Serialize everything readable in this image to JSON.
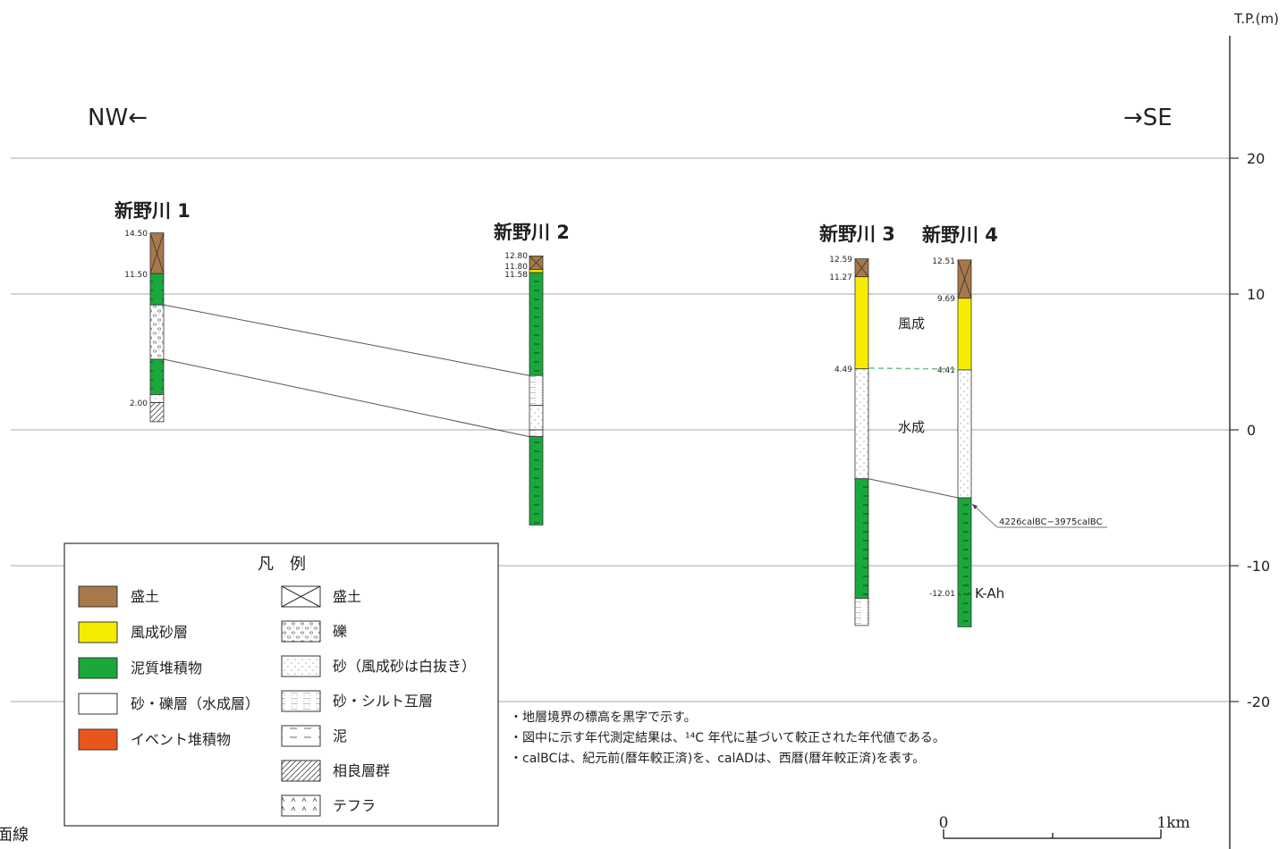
{
  "axis": {
    "unit_label": "T.P.(m)",
    "ticks": [
      {
        "value": 20,
        "label": "20"
      },
      {
        "value": 10,
        "label": "10"
      },
      {
        "value": 0,
        "label": "0"
      },
      {
        "value": -10,
        "label": "-10"
      },
      {
        "value": -20,
        "label": "-20"
      }
    ]
  },
  "direction": {
    "left": "NW←",
    "right": "→SE"
  },
  "boreholes": [
    {
      "name": "新野川 1",
      "depth_labels": [
        "14.50",
        "11.50",
        "2.00"
      ],
      "layers": [
        {
          "top": 14.5,
          "bottom": 11.5,
          "type": "fill"
        },
        {
          "top": 11.5,
          "bottom": 9.2,
          "type": "mud"
        },
        {
          "top": 9.2,
          "bottom": 5.2,
          "type": "gravel"
        },
        {
          "top": 5.2,
          "bottom": 2.6,
          "type": "mud"
        },
        {
          "top": 2.6,
          "bottom": 2.0,
          "type": "sand"
        },
        {
          "top": 2.0,
          "bottom": 0.6,
          "type": "sagara"
        }
      ]
    },
    {
      "name": "新野川 2",
      "depth_labels": [
        "12.80",
        "11.80",
        "11.58"
      ],
      "layers": [
        {
          "top": 12.8,
          "bottom": 11.8,
          "type": "fill"
        },
        {
          "top": 11.8,
          "bottom": 11.58,
          "type": "eolian"
        },
        {
          "top": 11.58,
          "bottom": 4.0,
          "type": "mud"
        },
        {
          "top": 4.0,
          "bottom": 1.8,
          "type": "silt"
        },
        {
          "top": 1.8,
          "bottom": 0.0,
          "type": "sand"
        },
        {
          "top": 0.0,
          "bottom": -0.5,
          "type": "silt"
        },
        {
          "top": -0.5,
          "bottom": -7.0,
          "type": "mud"
        }
      ]
    },
    {
      "name": "新野川 3",
      "depth_labels": [
        "12.59",
        "11.27",
        "4.49"
      ],
      "layers": [
        {
          "top": 12.59,
          "bottom": 11.27,
          "type": "fill"
        },
        {
          "top": 11.27,
          "bottom": 4.49,
          "type": "eolian"
        },
        {
          "top": 4.49,
          "bottom": -3.6,
          "type": "sand"
        },
        {
          "top": -3.6,
          "bottom": -12.4,
          "type": "mud"
        },
        {
          "top": -12.4,
          "bottom": -14.4,
          "type": "silt"
        }
      ]
    },
    {
      "name": "新野川 4",
      "depth_labels": [
        "12.51",
        "9.69",
        "4.41",
        "-12.01"
      ],
      "layers": [
        {
          "top": 12.51,
          "bottom": 9.69,
          "type": "fill"
        },
        {
          "top": 9.69,
          "bottom": 4.41,
          "type": "eolian"
        },
        {
          "top": 4.41,
          "bottom": -5.0,
          "type": "sand"
        },
        {
          "top": -5.0,
          "bottom": -14.5,
          "type": "mud"
        }
      ]
    }
  ],
  "annotations": {
    "eolian": "風成",
    "aqueous": "水成",
    "dating": "4226calBC−3975calBC",
    "tephra": "K-Ah"
  },
  "legend": {
    "title": "凡　例",
    "colors": [
      {
        "label": "盛土",
        "color": "#a8784a"
      },
      {
        "label": "風成砂層",
        "color": "#f6ec00"
      },
      {
        "label": "泥質堆積物",
        "color": "#1aa83c"
      },
      {
        "label": "砂・礫層（水成層）",
        "color": "#ffffff"
      },
      {
        "label": "イベント堆積物",
        "color": "#e9561c"
      }
    ],
    "patterns": [
      {
        "label": "盛土",
        "pattern": "cross"
      },
      {
        "label": "礫",
        "pattern": "gravel"
      },
      {
        "label": "砂（風成砂は白抜き）",
        "pattern": "sand"
      },
      {
        "label": "砂・シルト互層",
        "pattern": "silt"
      },
      {
        "label": "泥",
        "pattern": "mud"
      },
      {
        "label": "相良層群",
        "pattern": "hatch"
      },
      {
        "label": "テフラ",
        "pattern": "tephra"
      }
    ]
  },
  "notes": [
    "・地層境界の標高を黒字で示す。",
    "・図中に示す年代測定結果は、¹⁴C 年代に基づいて較正された年代値である。",
    "・calBCは、紀元前(暦年較正済)を、calADは、西暦(暦年較正済)を表す。"
  ],
  "scale_bar": {
    "start": "0",
    "end": "1km"
  },
  "corner_text": "面線"
}
